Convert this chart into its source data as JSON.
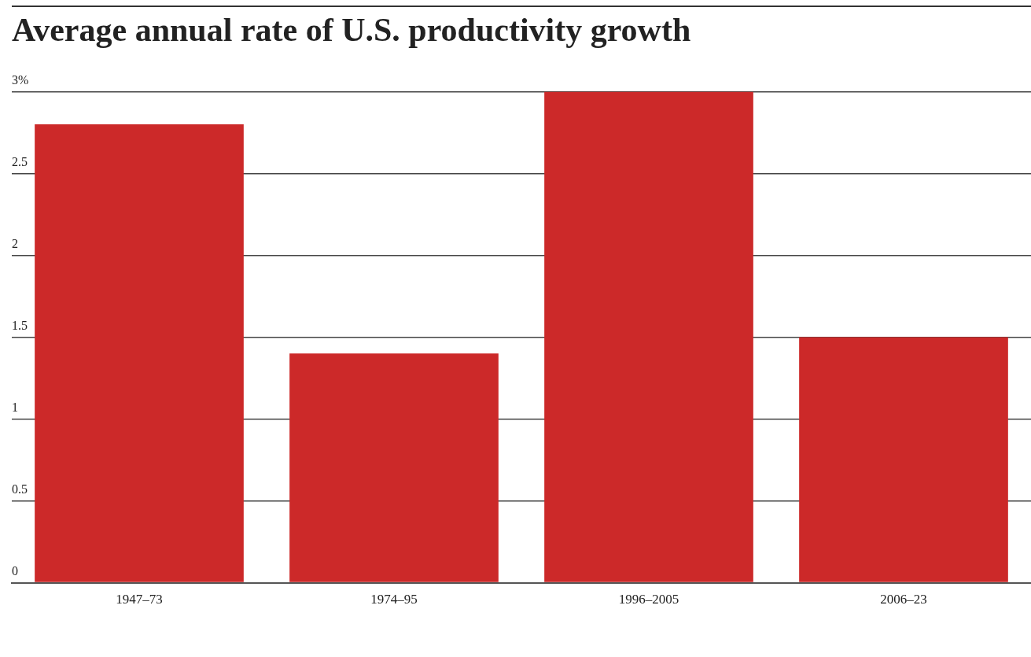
{
  "chart_data": {
    "type": "bar",
    "title": "Average annual rate of U.S. productivity growth",
    "categories": [
      "1947–73",
      "1974–95",
      "1996–2005",
      "2006–23"
    ],
    "values": [
      2.8,
      1.4,
      3.0,
      1.5
    ],
    "color": "#cc2929",
    "ylim": [
      0,
      3
    ],
    "yticks": [
      0,
      0.5,
      1,
      1.5,
      2,
      2.5,
      {
        "value": 3,
        "label": "3%"
      }
    ],
    "grid": "y",
    "legend": false
  }
}
